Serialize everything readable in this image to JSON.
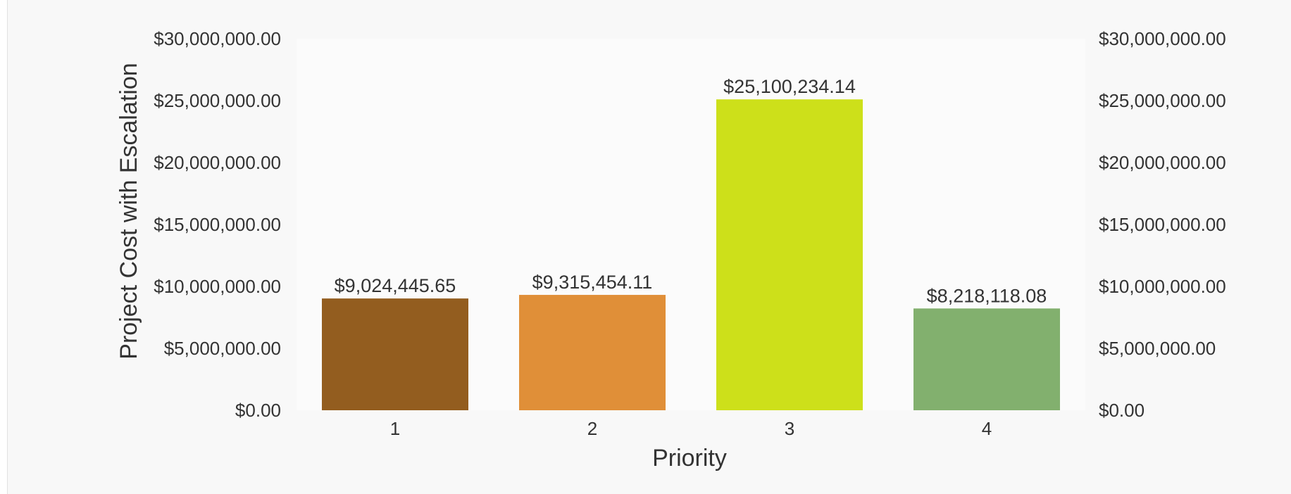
{
  "chart_data": {
    "type": "bar",
    "xlabel": "Priority",
    "ylabel": "Project Cost with Escalation",
    "categories": [
      "1",
      "2",
      "3",
      "4"
    ],
    "values": [
      9024445.65,
      9315454.11,
      25100234.14,
      8218118.08
    ],
    "data_labels": [
      "$9,024,445.65",
      "$9,315,454.11",
      "$25,100,234.14",
      "$8,218,118.08"
    ],
    "colors": [
      "#935d1f",
      "#e08f38",
      "#cde01a",
      "#82b06e"
    ],
    "ylim": [
      0,
      30000000
    ],
    "y_ticks": [
      0,
      5000000,
      10000000,
      15000000,
      20000000,
      25000000,
      30000000
    ],
    "y_tick_labels": [
      "$0.00",
      "$5,000,000.00",
      "$10,000,000.00",
      "$15,000,000.00",
      "$20,000,000.00",
      "$25,000,000.00",
      "$30,000,000.00"
    ],
    "secondary_axis": true,
    "grid": false,
    "legend": "none"
  }
}
